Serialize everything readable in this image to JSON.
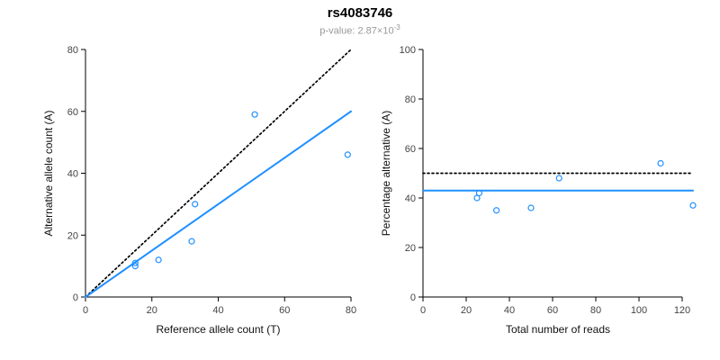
{
  "header": {
    "title": "rs4083746",
    "pvalue_text": "p-value: 2.87×10",
    "pvalue_exponent": "-3"
  },
  "colors": {
    "point": "#1E90FF",
    "fit_line": "#1E90FF",
    "reference_line": "#000000",
    "axis": "#000000",
    "tick_label": "#444444",
    "title": "#000000",
    "subtitle": "#999999"
  },
  "chart_data": [
    {
      "type": "scatter",
      "title": "",
      "xlabel": "Reference allele count (T)",
      "ylabel": "Alternative allele count (A)",
      "xlim": [
        0,
        80
      ],
      "ylim": [
        0,
        80
      ],
      "xticks": [
        0,
        20,
        40,
        60,
        80
      ],
      "yticks": [
        0,
        20,
        40,
        60,
        80
      ],
      "grid": false,
      "legend": "none",
      "points": [
        [
          15,
          10
        ],
        [
          15,
          11
        ],
        [
          22,
          12
        ],
        [
          32,
          18
        ],
        [
          33,
          30
        ],
        [
          51,
          59
        ],
        [
          79,
          46
        ]
      ],
      "lines": [
        {
          "name": "identity-line",
          "style": "dotted",
          "color": "#000000",
          "x": [
            0,
            80
          ],
          "y": [
            0,
            80
          ]
        },
        {
          "name": "fit-line",
          "style": "solid",
          "color": "#1E90FF",
          "x": [
            0,
            80
          ],
          "y": [
            0,
            60
          ]
        }
      ]
    },
    {
      "type": "scatter",
      "title": "",
      "xlabel": "Total number of reads",
      "ylabel": "Percentage alternative (A)",
      "xlim": [
        0,
        125
      ],
      "ylim": [
        0,
        100
      ],
      "xticks": [
        0,
        20,
        40,
        60,
        80,
        100,
        120
      ],
      "yticks": [
        0,
        20,
        40,
        60,
        80,
        100
      ],
      "grid": false,
      "legend": "none",
      "points": [
        [
          25,
          40
        ],
        [
          26,
          42
        ],
        [
          34,
          35
        ],
        [
          50,
          36
        ],
        [
          63,
          48
        ],
        [
          110,
          54
        ],
        [
          125,
          37
        ]
      ],
      "lines": [
        {
          "name": "expected-50-line",
          "style": "dotted",
          "color": "#000000",
          "x": [
            0,
            125
          ],
          "y": [
            50,
            50
          ]
        },
        {
          "name": "mean-percentage-line",
          "style": "solid",
          "color": "#1E90FF",
          "x": [
            0,
            125
          ],
          "y": [
            43,
            43
          ]
        }
      ]
    }
  ]
}
